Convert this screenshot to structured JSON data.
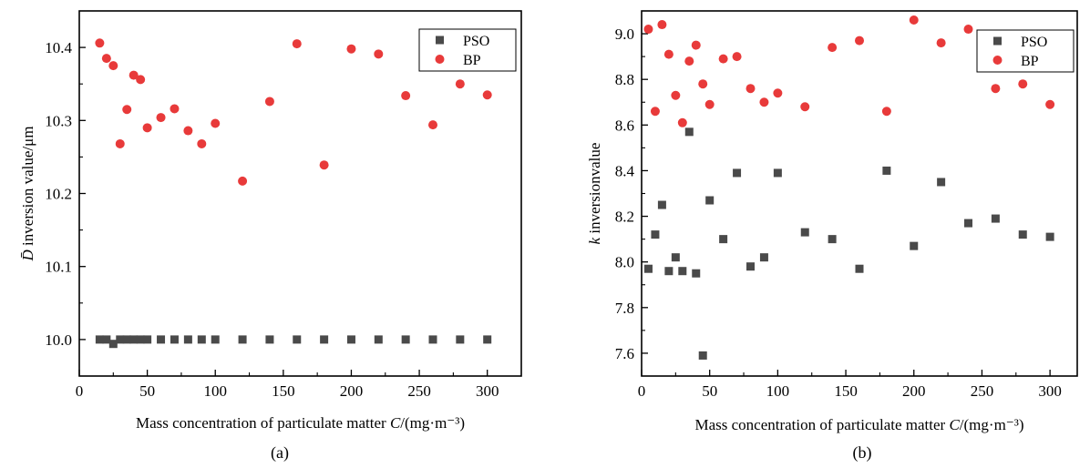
{
  "figure": {
    "panels": [
      {
        "caption": "(a)"
      },
      {
        "caption": "(b)"
      }
    ]
  },
  "colors": {
    "pso": "#4a4a4a",
    "bp": "#e83a3a",
    "axis": "#000000"
  },
  "chart_data": [
    {
      "type": "scatter",
      "xlabel": "Mass concentration of particulate matter C/(mg·m⁻³)",
      "ylabel": "D̄ inversion value/μm",
      "xlim": [
        0,
        325
      ],
      "ylim": [
        9.95,
        10.45
      ],
      "xticks": [
        0,
        50,
        100,
        150,
        200,
        250,
        300
      ],
      "yticks": [
        10.0,
        10.1,
        10.2,
        10.3,
        10.4
      ],
      "ytick_labels": [
        "10.0",
        "10.1",
        "10.2",
        "10.3",
        "10.4"
      ],
      "grid": false,
      "legend_position": "top-right",
      "series": [
        {
          "name": "PSO",
          "marker": "square",
          "x": [
            15,
            20,
            25,
            30,
            35,
            40,
            45,
            50,
            60,
            70,
            80,
            90,
            100,
            120,
            140,
            160,
            180,
            200,
            220,
            240,
            260,
            280,
            300
          ],
          "y": [
            10.0,
            10.0,
            9.994,
            10.0,
            10.0,
            10.0,
            10.0,
            10.0,
            10.0,
            10.0,
            10.0,
            10.0,
            10.0,
            10.0,
            10.0,
            10.0,
            10.0,
            10.0,
            10.0,
            10.0,
            10.0,
            10.0,
            10.0
          ]
        },
        {
          "name": "BP",
          "marker": "circle",
          "x": [
            15,
            20,
            25,
            30,
            35,
            40,
            45,
            50,
            60,
            70,
            80,
            90,
            100,
            120,
            140,
            160,
            180,
            200,
            220,
            240,
            260,
            280,
            300
          ],
          "y": [
            10.406,
            10.385,
            10.375,
            10.268,
            10.315,
            10.362,
            10.356,
            10.29,
            10.304,
            10.316,
            10.286,
            10.268,
            10.296,
            10.217,
            10.326,
            10.405,
            10.239,
            10.398,
            10.391,
            10.334,
            10.294,
            10.35,
            10.335
          ]
        }
      ]
    },
    {
      "type": "scatter",
      "xlabel": "Mass concentration of particulate matter C/(mg·m⁻³)",
      "ylabel": "k inversionvalue",
      "xlim": [
        0,
        320
      ],
      "ylim": [
        7.5,
        9.1
      ],
      "xticks": [
        0,
        50,
        100,
        150,
        200,
        250,
        300
      ],
      "yticks": [
        7.6,
        7.8,
        8.0,
        8.2,
        8.4,
        8.6,
        8.8,
        9.0
      ],
      "ytick_labels": [
        "7.6",
        "7.8",
        "8.0",
        "8.2",
        "8.4",
        "8.6",
        "8.8",
        "9.0"
      ],
      "grid": false,
      "legend_position": "top-right",
      "series": [
        {
          "name": "PSO",
          "marker": "square",
          "x": [
            5,
            10,
            15,
            20,
            25,
            30,
            35,
            40,
            45,
            50,
            60,
            70,
            80,
            90,
            100,
            120,
            140,
            160,
            180,
            200,
            220,
            240,
            260,
            280,
            300
          ],
          "y": [
            7.97,
            8.12,
            8.25,
            7.96,
            8.02,
            7.96,
            8.57,
            7.95,
            7.59,
            8.27,
            8.1,
            8.39,
            7.98,
            8.02,
            8.39,
            8.13,
            8.1,
            7.97,
            8.4,
            8.07,
            8.35,
            8.17,
            8.19,
            8.12,
            8.11
          ]
        },
        {
          "name": "BP",
          "marker": "circle",
          "x": [
            5,
            10,
            15,
            20,
            25,
            30,
            35,
            40,
            45,
            50,
            60,
            70,
            80,
            90,
            100,
            120,
            140,
            160,
            180,
            200,
            220,
            240,
            260,
            280,
            300
          ],
          "y": [
            9.02,
            8.66,
            9.04,
            8.91,
            8.73,
            8.61,
            8.88,
            8.95,
            8.78,
            8.69,
            8.89,
            8.9,
            8.76,
            8.7,
            8.74,
            8.68,
            8.94,
            8.97,
            8.66,
            9.06,
            8.96,
            9.02,
            8.76,
            8.78,
            8.69
          ]
        }
      ]
    }
  ]
}
